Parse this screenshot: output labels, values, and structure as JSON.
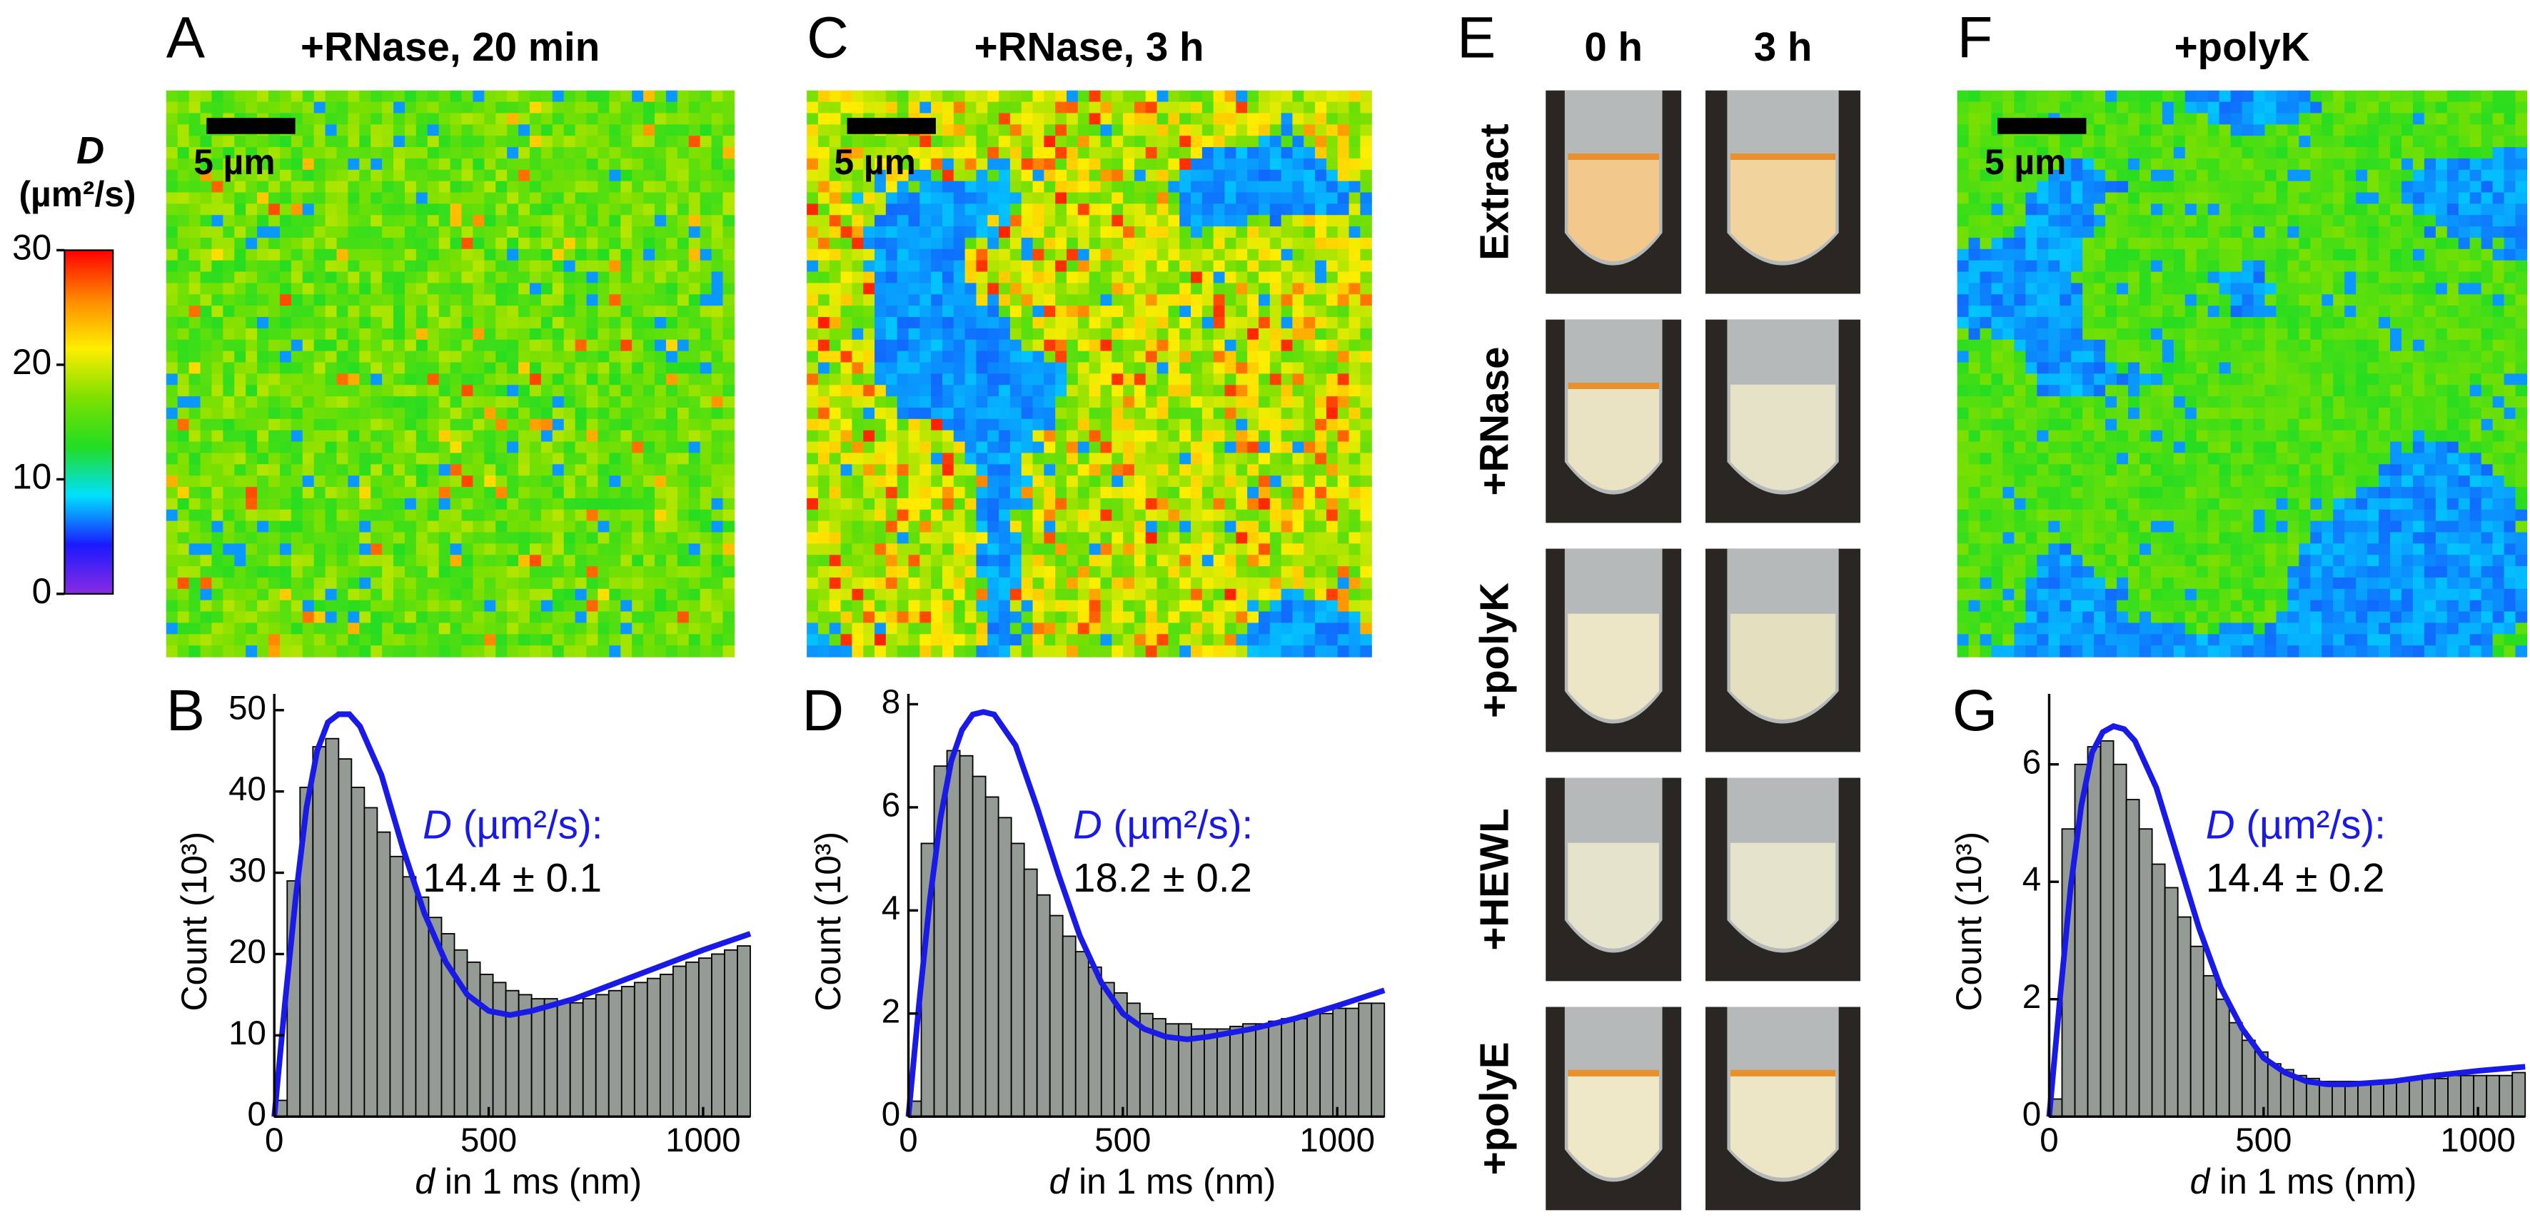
{
  "chart_data": [
    {
      "type": "colorbar",
      "title": "D",
      "unit": "(µm²/s)",
      "ylim": [
        0,
        30
      ],
      "yticks": [
        0,
        10,
        20,
        30
      ],
      "colors": [
        "#8a2be2",
        "#1a1aff",
        "#00e0ff",
        "#22dd22",
        "#7ee000",
        "#ffee00",
        "#ff8800",
        "#ff0000"
      ]
    },
    {
      "type": "heatmap",
      "panel": "A",
      "title": "+RNase, 20 min",
      "scalebar": "5 µm"
    },
    {
      "type": "heatmap",
      "panel": "C",
      "title": "+RNase, 3 h",
      "scalebar": "5 µm"
    },
    {
      "type": "photos",
      "panel": "E",
      "columns": [
        "0 h",
        "3 h"
      ],
      "rows": [
        "Extract",
        "+RNase",
        "+polyK",
        "+HEWL",
        "+polyE"
      ]
    },
    {
      "type": "heatmap",
      "panel": "F",
      "title": "+polyK",
      "scalebar": "5 µm"
    },
    {
      "type": "histogram",
      "panel": "B",
      "color": "#939b94",
      "ylabel": "Count (10³)",
      "xlabel": {
        "symbol": "d",
        "text": "in 1 ms (nm)"
      },
      "annotation": {
        "symbol": "D",
        "unit": "(µm²/s):",
        "value": "14.4 ± 0.1"
      },
      "xlim": [
        0,
        1110
      ],
      "xticks": [
        0,
        500,
        1000
      ],
      "ylim": [
        0,
        52
      ],
      "yticks": [
        0,
        10,
        20,
        30,
        40,
        50
      ],
      "bins": [
        0,
        30,
        60,
        90,
        120,
        150,
        180,
        210,
        240,
        270,
        300,
        330,
        360,
        390,
        420,
        450,
        480,
        510,
        540,
        570,
        600,
        630,
        660,
        690,
        720,
        750,
        780,
        810,
        840,
        870,
        900,
        930,
        960,
        990,
        1020,
        1050,
        1080,
        1110
      ],
      "values": [
        2,
        29,
        40.5,
        45.5,
        46.5,
        44,
        40.5,
        38,
        35,
        32,
        29.5,
        27,
        24.5,
        22.5,
        20.5,
        19,
        17.5,
        16.5,
        15.5,
        15,
        14.5,
        14.5,
        14,
        14,
        14.5,
        15,
        15.5,
        16,
        16.5,
        17,
        17.5,
        18.5,
        19,
        19.5,
        20,
        20.5,
        21
      ],
      "fit": {
        "color": "#1a1ae6",
        "x": [
          0,
          25,
          50,
          75,
          100,
          125,
          150,
          175,
          200,
          250,
          300,
          350,
          400,
          450,
          500,
          550,
          600,
          700,
          800,
          900,
          1000,
          1110
        ],
        "y": [
          0,
          14,
          27,
          38,
          45,
          48.5,
          49.5,
          49.5,
          48,
          42,
          33,
          25,
          19,
          15,
          13,
          12.5,
          13,
          14.5,
          16.5,
          18.5,
          20.5,
          22.5
        ]
      }
    },
    {
      "type": "histogram",
      "panel": "D",
      "color": "#939b94",
      "ylabel": "Count (10³)",
      "xlabel": {
        "symbol": "d",
        "text": "in 1 ms (nm)"
      },
      "annotation": {
        "symbol": "D",
        "unit": "(µm²/s):",
        "value": "18.2 ± 0.2"
      },
      "xlim": [
        0,
        1110
      ],
      "xticks": [
        0,
        500,
        1000
      ],
      "ylim": [
        0,
        8.2
      ],
      "yticks": [
        0,
        2,
        4,
        6,
        8
      ],
      "bins": [
        0,
        30,
        60,
        90,
        120,
        150,
        180,
        210,
        240,
        270,
        300,
        330,
        360,
        390,
        420,
        450,
        480,
        510,
        540,
        570,
        600,
        630,
        660,
        690,
        720,
        750,
        780,
        810,
        840,
        870,
        900,
        930,
        960,
        990,
        1020,
        1050,
        1080,
        1110
      ],
      "values": [
        0.3,
        5.3,
        6.8,
        7.1,
        7.0,
        6.6,
        6.2,
        5.8,
        5.3,
        4.8,
        4.3,
        3.9,
        3.5,
        3.2,
        2.9,
        2.6,
        2.4,
        2.2,
        2.0,
        1.9,
        1.8,
        1.8,
        1.7,
        1.7,
        1.7,
        1.75,
        1.8,
        1.8,
        1.85,
        1.9,
        1.9,
        2.0,
        2.0,
        2.1,
        2.1,
        2.2,
        2.2
      ],
      "fit": {
        "color": "#1a1ae6",
        "x": [
          0,
          25,
          50,
          75,
          100,
          125,
          150,
          175,
          200,
          250,
          300,
          350,
          400,
          450,
          500,
          550,
          600,
          650,
          700,
          800,
          900,
          1000,
          1110
        ],
        "y": [
          0,
          2.2,
          4.2,
          5.8,
          6.9,
          7.5,
          7.8,
          7.85,
          7.8,
          7.2,
          6.0,
          4.7,
          3.5,
          2.6,
          2.0,
          1.7,
          1.55,
          1.5,
          1.55,
          1.7,
          1.9,
          2.15,
          2.45
        ]
      }
    },
    {
      "type": "histogram",
      "panel": "G",
      "color": "#939b94",
      "ylabel": "Count (10³)",
      "xlabel": {
        "symbol": "d",
        "text": "in 1 ms (nm)"
      },
      "annotation": {
        "symbol": "D",
        "unit": "(µm²/s):",
        "value": "14.4 ± 0.2"
      },
      "xlim": [
        0,
        1110
      ],
      "xticks": [
        0,
        500,
        1000
      ],
      "ylim": [
        0,
        7.2
      ],
      "yticks": [
        0,
        2,
        4,
        6
      ],
      "bins": [
        0,
        30,
        60,
        90,
        120,
        150,
        180,
        210,
        240,
        270,
        300,
        330,
        360,
        390,
        420,
        450,
        480,
        510,
        540,
        570,
        600,
        630,
        660,
        690,
        720,
        750,
        780,
        810,
        840,
        870,
        900,
        930,
        960,
        990,
        1020,
        1050,
        1080,
        1110
      ],
      "values": [
        0.3,
        4.9,
        6.0,
        6.3,
        6.4,
        6.0,
        5.4,
        4.9,
        4.3,
        3.9,
        3.4,
        2.9,
        2.4,
        2.0,
        1.6,
        1.3,
        1.1,
        0.9,
        0.8,
        0.7,
        0.65,
        0.6,
        0.6,
        0.6,
        0.6,
        0.6,
        0.6,
        0.6,
        0.65,
        0.65,
        0.65,
        0.7,
        0.7,
        0.7,
        0.7,
        0.7,
        0.75
      ],
      "fit": {
        "color": "#1a1ae6",
        "x": [
          0,
          25,
          50,
          75,
          100,
          125,
          150,
          175,
          200,
          250,
          300,
          350,
          400,
          450,
          500,
          550,
          600,
          650,
          700,
          800,
          900,
          1000,
          1110
        ],
        "y": [
          0,
          2.0,
          3.9,
          5.3,
          6.2,
          6.55,
          6.65,
          6.6,
          6.4,
          5.6,
          4.4,
          3.2,
          2.2,
          1.5,
          1.0,
          0.75,
          0.6,
          0.55,
          0.55,
          0.6,
          0.7,
          0.78,
          0.85
        ]
      }
    }
  ]
}
